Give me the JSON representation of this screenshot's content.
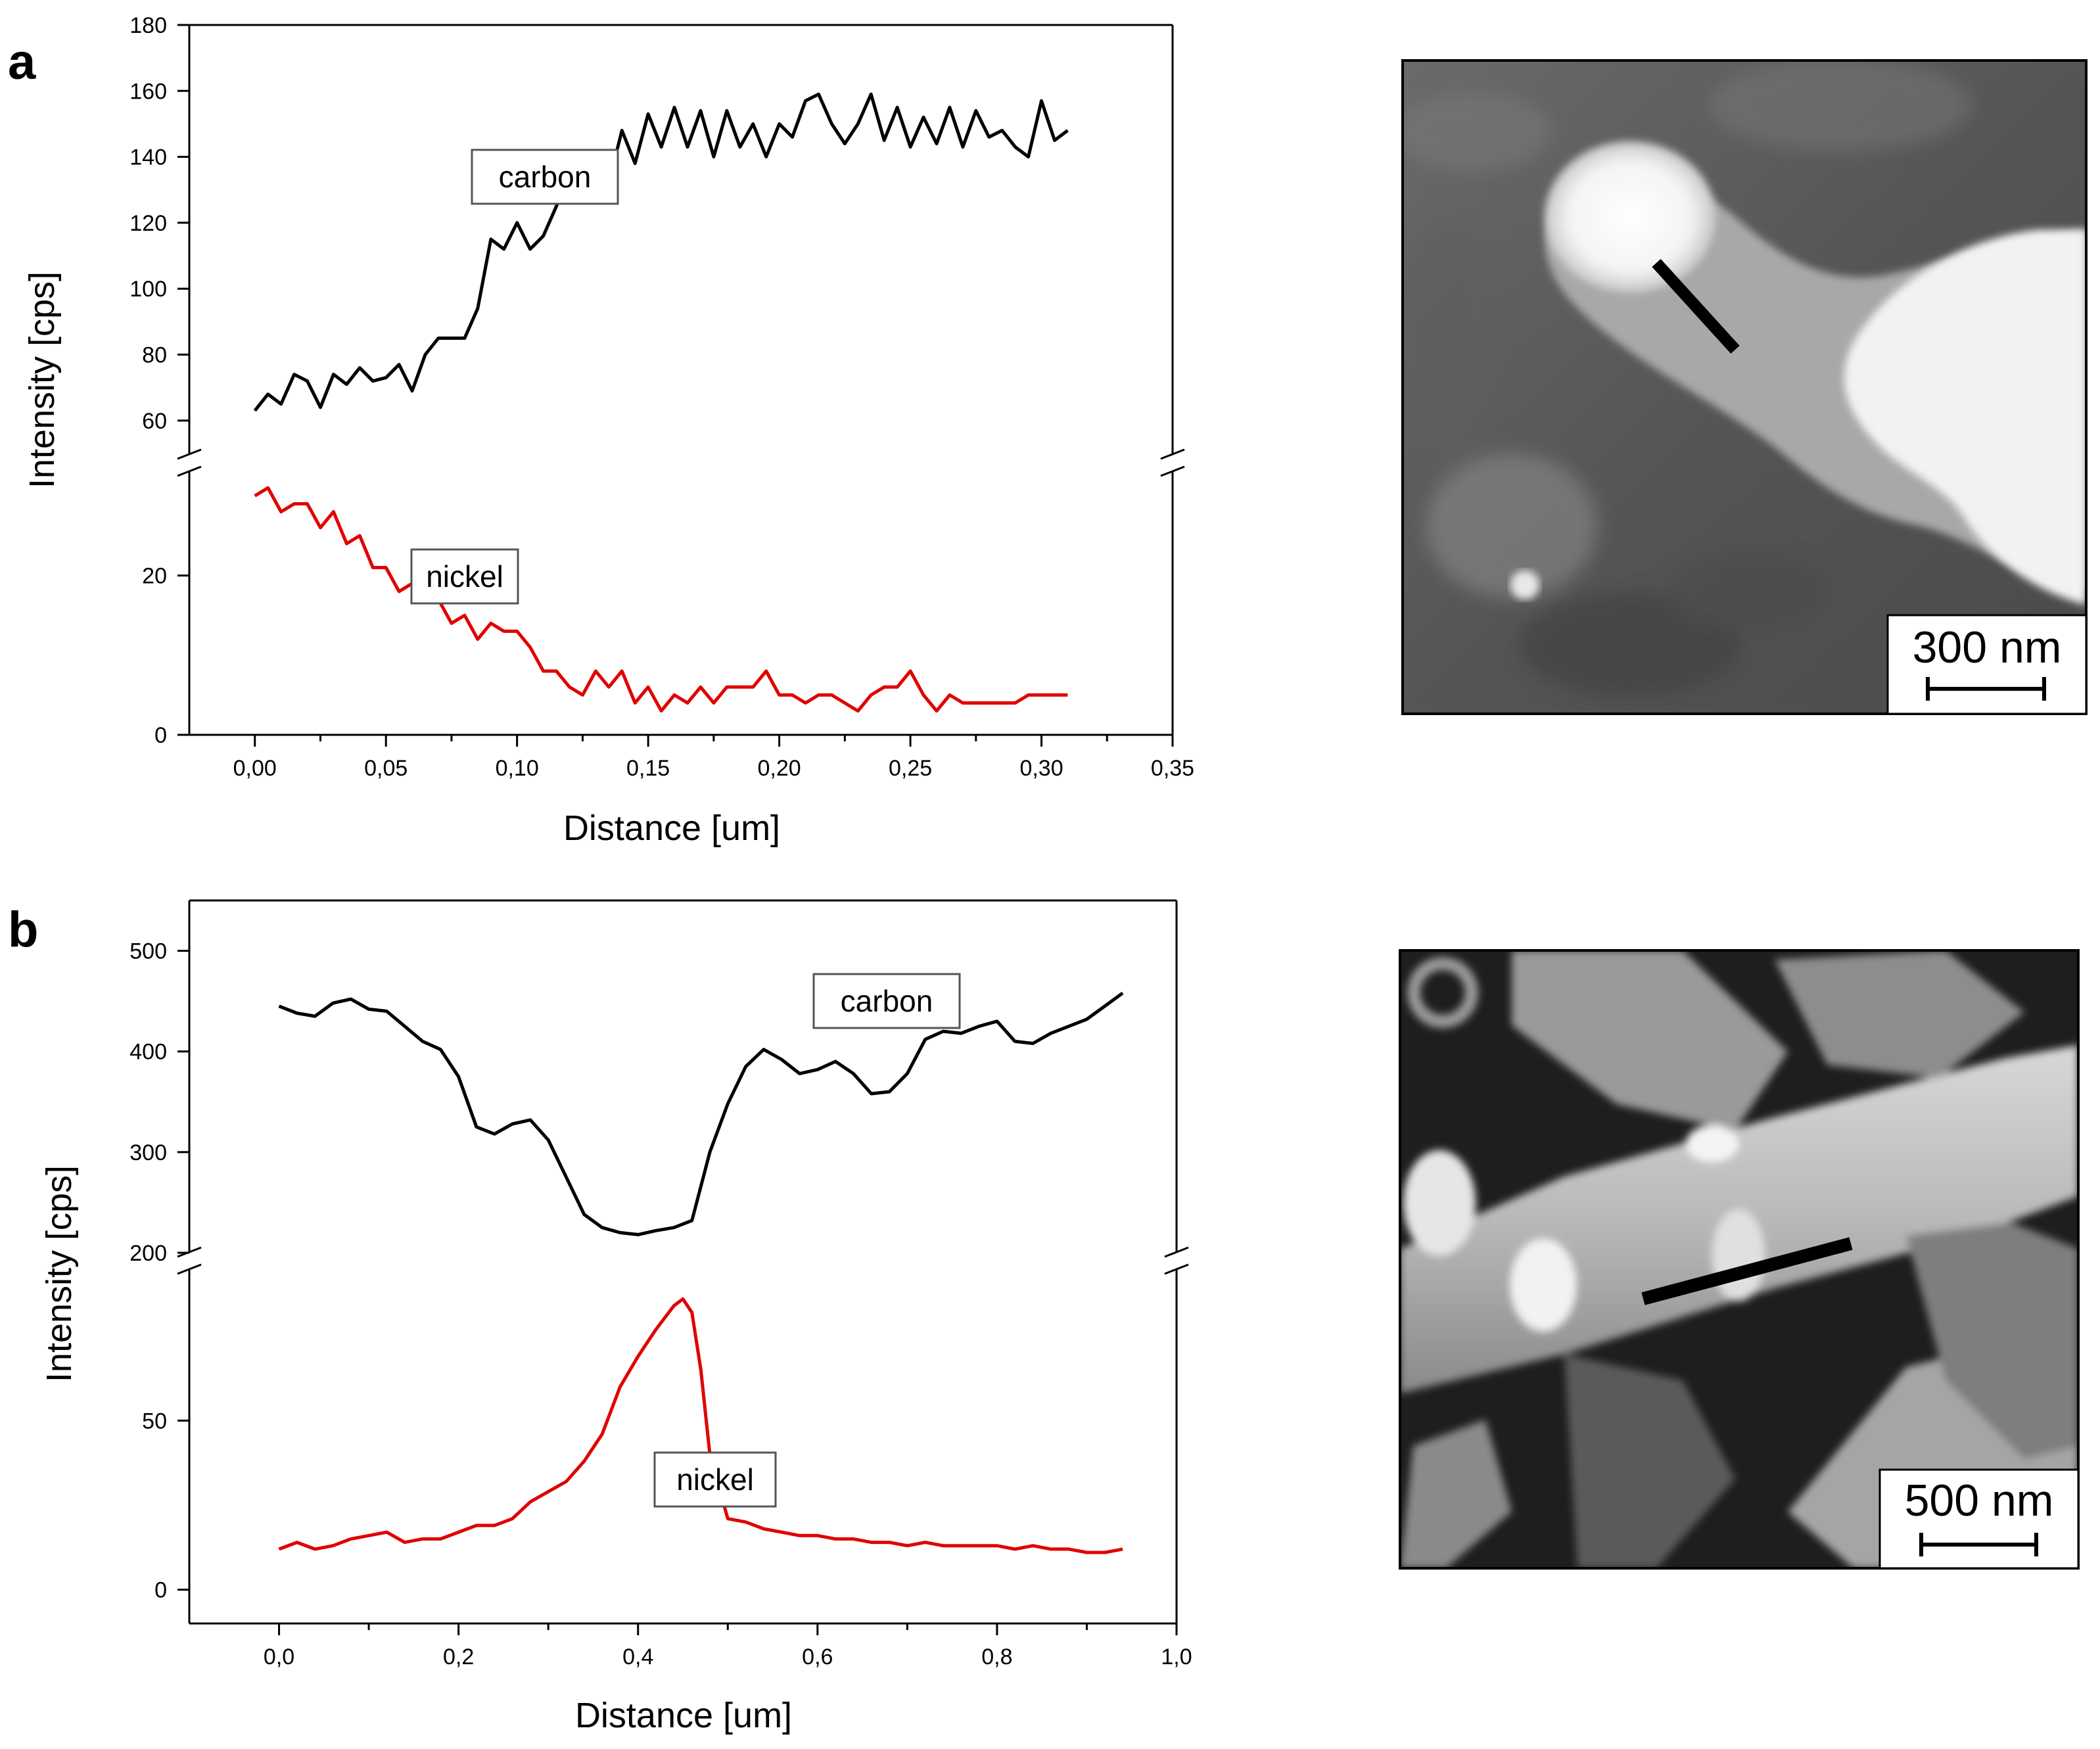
{
  "figure": {
    "panels": [
      "a",
      "b"
    ]
  },
  "chart_data": [
    {
      "panel": "a",
      "type": "line",
      "xlabel": "Distance [um]",
      "ylabel": "Intensity [cps]",
      "xlim": [
        -0.025,
        0.35
      ],
      "x_ticks": [
        "0,00",
        "0,05",
        "0,10",
        "0,15",
        "0,20",
        "0,25",
        "0,30",
        "0,35"
      ],
      "x_tick_values": [
        0,
        0.05,
        0.1,
        0.15,
        0.2,
        0.25,
        0.3,
        0.35
      ],
      "axis_break": true,
      "upper_ylim": [
        50,
        180
      ],
      "upper_y_ticks": [
        "60",
        "80",
        "100",
        "120",
        "140",
        "160",
        "180"
      ],
      "upper_y_tick_values": [
        60,
        80,
        100,
        120,
        140,
        160,
        180
      ],
      "lower_ylim": [
        0,
        33
      ],
      "lower_y_ticks": [
        "0",
        "20"
      ],
      "lower_y_tick_values": [
        0,
        20
      ],
      "grid": false,
      "series": [
        {
          "name": "carbon",
          "color": "#000000",
          "axis": "upper",
          "x": [
            0.0,
            0.005,
            0.01,
            0.015,
            0.02,
            0.025,
            0.03,
            0.035,
            0.04,
            0.045,
            0.05,
            0.055,
            0.06,
            0.065,
            0.07,
            0.075,
            0.08,
            0.085,
            0.09,
            0.095,
            0.1,
            0.105,
            0.11,
            0.115,
            0.12,
            0.125,
            0.13,
            0.135,
            0.14,
            0.145,
            0.15,
            0.155,
            0.16,
            0.165,
            0.17,
            0.175,
            0.18,
            0.185,
            0.19,
            0.195,
            0.2,
            0.205,
            0.21,
            0.215,
            0.22,
            0.225,
            0.23,
            0.235,
            0.24,
            0.245,
            0.25,
            0.255,
            0.26,
            0.265,
            0.27,
            0.275,
            0.28,
            0.285,
            0.29,
            0.295,
            0.3,
            0.305,
            0.31
          ],
          "y": [
            63,
            68,
            65,
            74,
            72,
            64,
            74,
            71,
            76,
            72,
            73,
            77,
            69,
            80,
            85,
            85,
            85,
            94,
            115,
            112,
            120,
            112,
            116,
            125,
            135,
            130,
            138,
            132,
            148,
            138,
            153,
            143,
            155,
            143,
            154,
            140,
            154,
            143,
            150,
            140,
            150,
            146,
            157,
            159,
            150,
            144,
            150,
            159,
            145,
            155,
            143,
            152,
            144,
            155,
            143,
            154,
            146,
            148,
            143,
            140,
            157,
            145,
            148
          ]
        },
        {
          "name": "nickel",
          "color": "#e00000",
          "axis": "lower",
          "x": [
            0.0,
            0.005,
            0.01,
            0.015,
            0.02,
            0.025,
            0.03,
            0.035,
            0.04,
            0.045,
            0.05,
            0.055,
            0.06,
            0.065,
            0.07,
            0.075,
            0.08,
            0.085,
            0.09,
            0.095,
            0.1,
            0.105,
            0.11,
            0.115,
            0.12,
            0.125,
            0.13,
            0.135,
            0.14,
            0.145,
            0.15,
            0.155,
            0.16,
            0.165,
            0.17,
            0.175,
            0.18,
            0.185,
            0.19,
            0.195,
            0.2,
            0.205,
            0.21,
            0.215,
            0.22,
            0.225,
            0.23,
            0.235,
            0.24,
            0.245,
            0.25,
            0.255,
            0.26,
            0.265,
            0.27,
            0.275,
            0.28,
            0.285,
            0.29,
            0.295,
            0.3,
            0.305,
            0.31
          ],
          "y": [
            30,
            31,
            28,
            29,
            29,
            26,
            28,
            24,
            25,
            21,
            21,
            18,
            19,
            18,
            17,
            14,
            15,
            12,
            14,
            13,
            13,
            11,
            8,
            8,
            6,
            5,
            8,
            6,
            8,
            4,
            6,
            3,
            5,
            4,
            6,
            4,
            6,
            6,
            6,
            8,
            5,
            5,
            4,
            5,
            5,
            4,
            3,
            5,
            6,
            6,
            8,
            5,
            3,
            5,
            4,
            4,
            4,
            4,
            4,
            5,
            5,
            5,
            5
          ]
        }
      ]
    },
    {
      "panel": "b",
      "type": "line",
      "xlabel": "Distance [um]",
      "ylabel": "Intensity [cps]",
      "xlim": [
        -0.1,
        1.0
      ],
      "x_ticks": [
        "0,0",
        "0,2",
        "0,4",
        "0,6",
        "0,8",
        "1,0"
      ],
      "x_tick_values": [
        0,
        0.2,
        0.4,
        0.6,
        0.8,
        1.0
      ],
      "axis_break": true,
      "upper_ylim": [
        200,
        550
      ],
      "upper_y_ticks": [
        "200",
        "300",
        "400",
        "500"
      ],
      "upper_y_tick_values": [
        200,
        300,
        400,
        500
      ],
      "lower_ylim": [
        -10,
        95
      ],
      "lower_y_ticks": [
        "0",
        "50"
      ],
      "lower_y_tick_values": [
        0,
        50
      ],
      "grid": false,
      "series": [
        {
          "name": "carbon",
          "color": "#000000",
          "axis": "upper",
          "x": [
            0.0,
            0.02,
            0.04,
            0.06,
            0.08,
            0.1,
            0.12,
            0.14,
            0.16,
            0.18,
            0.2,
            0.22,
            0.24,
            0.26,
            0.28,
            0.3,
            0.32,
            0.34,
            0.36,
            0.38,
            0.4,
            0.42,
            0.44,
            0.46,
            0.48,
            0.5,
            0.52,
            0.54,
            0.56,
            0.58,
            0.6,
            0.62,
            0.64,
            0.66,
            0.68,
            0.7,
            0.72,
            0.74,
            0.76,
            0.78,
            0.8,
            0.82,
            0.84,
            0.86,
            0.88,
            0.9,
            0.92,
            0.94
          ],
          "y": [
            445,
            438,
            435,
            448,
            452,
            442,
            440,
            425,
            410,
            402,
            375,
            325,
            318,
            328,
            332,
            312,
            275,
            238,
            225,
            220,
            218,
            222,
            225,
            232,
            300,
            348,
            385,
            402,
            392,
            378,
            382,
            390,
            378,
            358,
            360,
            378,
            412,
            420,
            418,
            425,
            430,
            410,
            408,
            418,
            425,
            432,
            445,
            458
          ]
        },
        {
          "name": "nickel",
          "color": "#e00000",
          "axis": "lower",
          "x": [
            0.0,
            0.02,
            0.04,
            0.06,
            0.08,
            0.1,
            0.12,
            0.14,
            0.16,
            0.18,
            0.2,
            0.22,
            0.24,
            0.26,
            0.28,
            0.3,
            0.32,
            0.34,
            0.36,
            0.38,
            0.4,
            0.42,
            0.44,
            0.45,
            0.46,
            0.47,
            0.48,
            0.5,
            0.52,
            0.54,
            0.56,
            0.58,
            0.6,
            0.62,
            0.64,
            0.66,
            0.68,
            0.7,
            0.72,
            0.74,
            0.76,
            0.78,
            0.8,
            0.82,
            0.84,
            0.86,
            0.88,
            0.9,
            0.92,
            0.94
          ],
          "y": [
            12,
            14,
            12,
            13,
            15,
            16,
            17,
            14,
            15,
            15,
            17,
            19,
            19,
            21,
            26,
            29,
            32,
            38,
            46,
            60,
            69,
            77,
            84,
            86,
            82,
            65,
            40,
            21,
            20,
            18,
            17,
            16,
            16,
            15,
            15,
            14,
            14,
            13,
            14,
            13,
            13,
            13,
            13,
            12,
            13,
            12,
            12,
            11,
            11,
            12
          ]
        }
      ]
    }
  ],
  "annotations": {
    "a": {
      "carbon": "carbon",
      "nickel": "nickel"
    },
    "b": {
      "carbon": "carbon",
      "nickel": "nickel"
    }
  },
  "micrographs": {
    "a": {
      "scale_bar_label": "300 nm"
    },
    "b": {
      "scale_bar_label": "500 nm"
    }
  }
}
